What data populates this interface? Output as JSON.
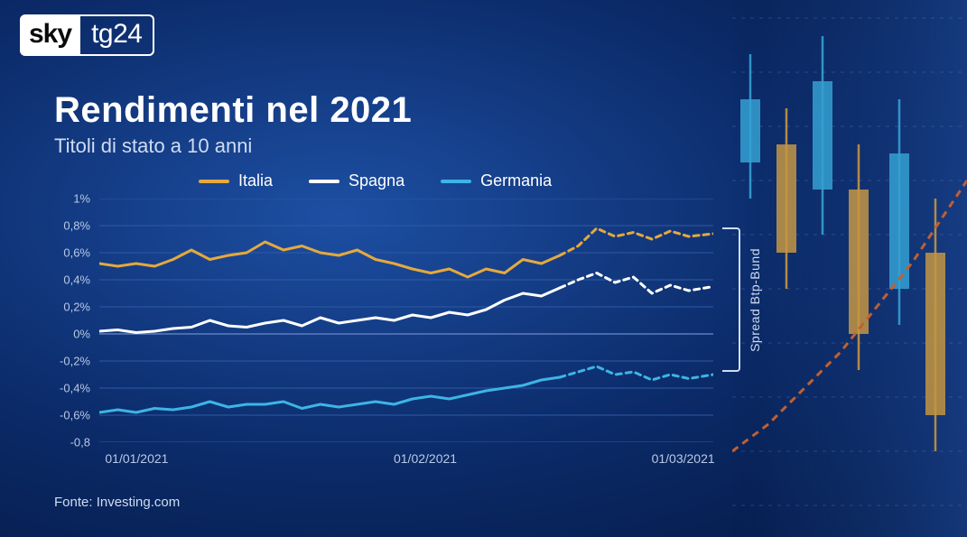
{
  "logo": {
    "sky": "sky",
    "tg24": "tg24"
  },
  "title": "Rendimenti nel 2021",
  "subtitle": "Titoli di stato a 10 anni",
  "source": "Fonte: Investing.com",
  "spread_label": "Spread Btp-Bund",
  "chart": {
    "type": "line",
    "background_color": "transparent",
    "grid_color": "#2e5aa5",
    "baseline_color": "#5c7cc0",
    "ylim": [
      -0.8,
      1.0
    ],
    "yticks": [
      {
        "v": 1.0,
        "label": "1%"
      },
      {
        "v": 0.8,
        "label": "0,8%"
      },
      {
        "v": 0.6,
        "label": "0,6%"
      },
      {
        "v": 0.4,
        "label": "0,4%"
      },
      {
        "v": 0.2,
        "label": "0,2%"
      },
      {
        "v": 0.0,
        "label": "0%"
      },
      {
        "v": -0.2,
        "label": "-0,2%"
      },
      {
        "v": -0.4,
        "label": "-0,4%"
      },
      {
        "v": -0.6,
        "label": "-0,6%"
      },
      {
        "v": -0.8,
        "label": "-0,8"
      }
    ],
    "xticks": [
      {
        "t": 0.03,
        "label": "01/01/2021"
      },
      {
        "t": 0.5,
        "label": "01/02/2021"
      },
      {
        "t": 0.92,
        "label": "01/03/2021"
      }
    ],
    "dash_start_t": 0.75,
    "series": [
      {
        "name": "Italia",
        "color": "#e5a93d",
        "line_width": 3,
        "points": [
          [
            0.0,
            0.52
          ],
          [
            0.03,
            0.5
          ],
          [
            0.06,
            0.52
          ],
          [
            0.09,
            0.5
          ],
          [
            0.12,
            0.55
          ],
          [
            0.15,
            0.62
          ],
          [
            0.18,
            0.55
          ],
          [
            0.21,
            0.58
          ],
          [
            0.24,
            0.6
          ],
          [
            0.27,
            0.68
          ],
          [
            0.3,
            0.62
          ],
          [
            0.33,
            0.65
          ],
          [
            0.36,
            0.6
          ],
          [
            0.39,
            0.58
          ],
          [
            0.42,
            0.62
          ],
          [
            0.45,
            0.55
          ],
          [
            0.48,
            0.52
          ],
          [
            0.51,
            0.48
          ],
          [
            0.54,
            0.45
          ],
          [
            0.57,
            0.48
          ],
          [
            0.6,
            0.42
          ],
          [
            0.63,
            0.48
          ],
          [
            0.66,
            0.45
          ],
          [
            0.69,
            0.55
          ],
          [
            0.72,
            0.52
          ],
          [
            0.75,
            0.58
          ],
          [
            0.78,
            0.65
          ],
          [
            0.81,
            0.78
          ],
          [
            0.84,
            0.72
          ],
          [
            0.87,
            0.75
          ],
          [
            0.9,
            0.7
          ],
          [
            0.93,
            0.76
          ],
          [
            0.96,
            0.72
          ],
          [
            1.0,
            0.74
          ]
        ]
      },
      {
        "name": "Spagna",
        "color": "#ffffff",
        "line_width": 3,
        "points": [
          [
            0.0,
            0.02
          ],
          [
            0.03,
            0.03
          ],
          [
            0.06,
            0.01
          ],
          [
            0.09,
            0.02
          ],
          [
            0.12,
            0.04
          ],
          [
            0.15,
            0.05
          ],
          [
            0.18,
            0.1
          ],
          [
            0.21,
            0.06
          ],
          [
            0.24,
            0.05
          ],
          [
            0.27,
            0.08
          ],
          [
            0.3,
            0.1
          ],
          [
            0.33,
            0.06
          ],
          [
            0.36,
            0.12
          ],
          [
            0.39,
            0.08
          ],
          [
            0.42,
            0.1
          ],
          [
            0.45,
            0.12
          ],
          [
            0.48,
            0.1
          ],
          [
            0.51,
            0.14
          ],
          [
            0.54,
            0.12
          ],
          [
            0.57,
            0.16
          ],
          [
            0.6,
            0.14
          ],
          [
            0.63,
            0.18
          ],
          [
            0.66,
            0.25
          ],
          [
            0.69,
            0.3
          ],
          [
            0.72,
            0.28
          ],
          [
            0.75,
            0.34
          ],
          [
            0.78,
            0.4
          ],
          [
            0.81,
            0.45
          ],
          [
            0.84,
            0.38
          ],
          [
            0.87,
            0.42
          ],
          [
            0.9,
            0.3
          ],
          [
            0.93,
            0.36
          ],
          [
            0.96,
            0.32
          ],
          [
            1.0,
            0.35
          ]
        ]
      },
      {
        "name": "Germania",
        "color": "#3cb5e5",
        "line_width": 3,
        "points": [
          [
            0.0,
            -0.58
          ],
          [
            0.03,
            -0.56
          ],
          [
            0.06,
            -0.58
          ],
          [
            0.09,
            -0.55
          ],
          [
            0.12,
            -0.56
          ],
          [
            0.15,
            -0.54
          ],
          [
            0.18,
            -0.5
          ],
          [
            0.21,
            -0.54
          ],
          [
            0.24,
            -0.52
          ],
          [
            0.27,
            -0.52
          ],
          [
            0.3,
            -0.5
          ],
          [
            0.33,
            -0.55
          ],
          [
            0.36,
            -0.52
          ],
          [
            0.39,
            -0.54
          ],
          [
            0.42,
            -0.52
          ],
          [
            0.45,
            -0.5
          ],
          [
            0.48,
            -0.52
          ],
          [
            0.51,
            -0.48
          ],
          [
            0.54,
            -0.46
          ],
          [
            0.57,
            -0.48
          ],
          [
            0.6,
            -0.45
          ],
          [
            0.63,
            -0.42
          ],
          [
            0.66,
            -0.4
          ],
          [
            0.69,
            -0.38
          ],
          [
            0.72,
            -0.34
          ],
          [
            0.75,
            -0.32
          ],
          [
            0.78,
            -0.28
          ],
          [
            0.81,
            -0.24
          ],
          [
            0.84,
            -0.3
          ],
          [
            0.87,
            -0.28
          ],
          [
            0.9,
            -0.34
          ],
          [
            0.93,
            -0.3
          ],
          [
            0.96,
            -0.33
          ],
          [
            1.0,
            -0.3
          ]
        ]
      }
    ]
  },
  "deco_candles": {
    "candle_colors": [
      "#3cb5e5",
      "#e5a93d"
    ],
    "trend_color": "#e06a2a",
    "grid_color": "#6f8fcd"
  }
}
